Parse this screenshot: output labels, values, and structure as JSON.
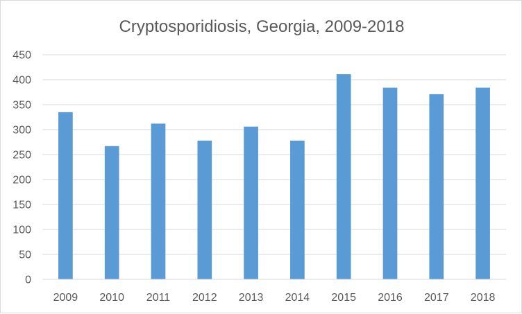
{
  "chart_data": {
    "type": "bar",
    "title": "Cryptosporidiosis,  Georgia, 2009-2018",
    "xlabel": "",
    "ylabel": "",
    "categories": [
      "2009",
      "2010",
      "2011",
      "2012",
      "2013",
      "2014",
      "2015",
      "2016",
      "2017",
      "2018"
    ],
    "values": [
      335,
      267,
      312,
      278,
      306,
      278,
      411,
      384,
      371,
      384
    ],
    "ylim": [
      0,
      450
    ],
    "yticks": [
      0,
      50,
      100,
      150,
      200,
      250,
      300,
      350,
      400,
      450
    ],
    "grid": true,
    "legend": "none",
    "bar_color": "#5b9bd5",
    "grid_color": "#d9d9d9"
  }
}
